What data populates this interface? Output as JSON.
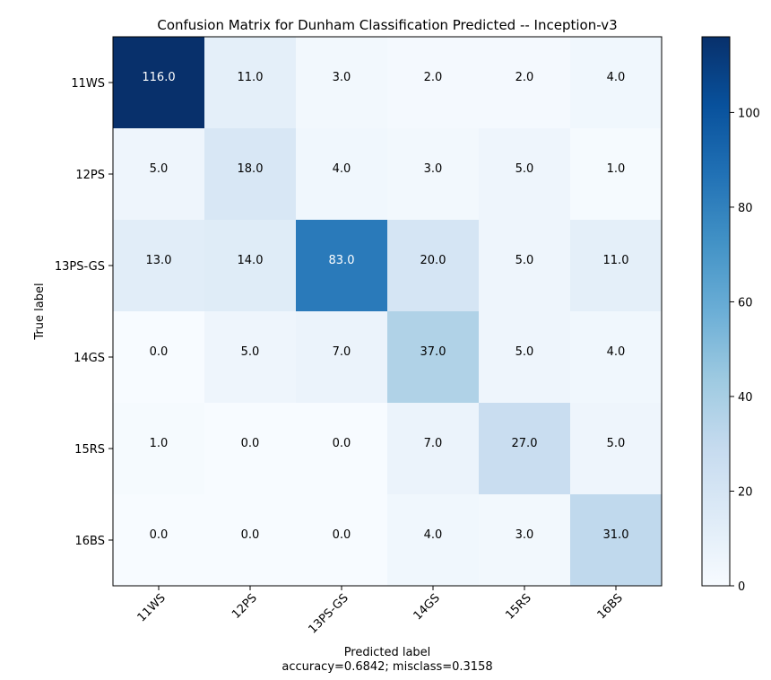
{
  "chart_data": {
    "type": "heatmap",
    "title": "Confusion Matrix for Dunham Classification Predicted -- Inception-v3",
    "xlabel": "Predicted label",
    "ylabel": "True label",
    "footer": "accuracy=0.6842; misclass=0.3158",
    "x_categories": [
      "11WS",
      "12PS",
      "13PS-GS",
      "14GS",
      "15RS",
      "16BS"
    ],
    "y_categories": [
      "11WS",
      "12PS",
      "13PS-GS",
      "14GS",
      "15RS",
      "16BS"
    ],
    "values": [
      [
        116,
        11,
        3,
        2,
        2,
        4
      ],
      [
        5,
        18,
        4,
        3,
        5,
        1
      ],
      [
        13,
        14,
        83,
        20,
        5,
        11
      ],
      [
        0,
        5,
        7,
        37,
        5,
        4
      ],
      [
        1,
        0,
        0,
        7,
        27,
        5
      ],
      [
        0,
        0,
        0,
        4,
        3,
        31
      ]
    ],
    "colorbar": {
      "min": 0,
      "max": 116,
      "ticks": [
        0,
        20,
        40,
        60,
        80,
        100
      ]
    },
    "colormap": "Blues",
    "grid": false
  }
}
